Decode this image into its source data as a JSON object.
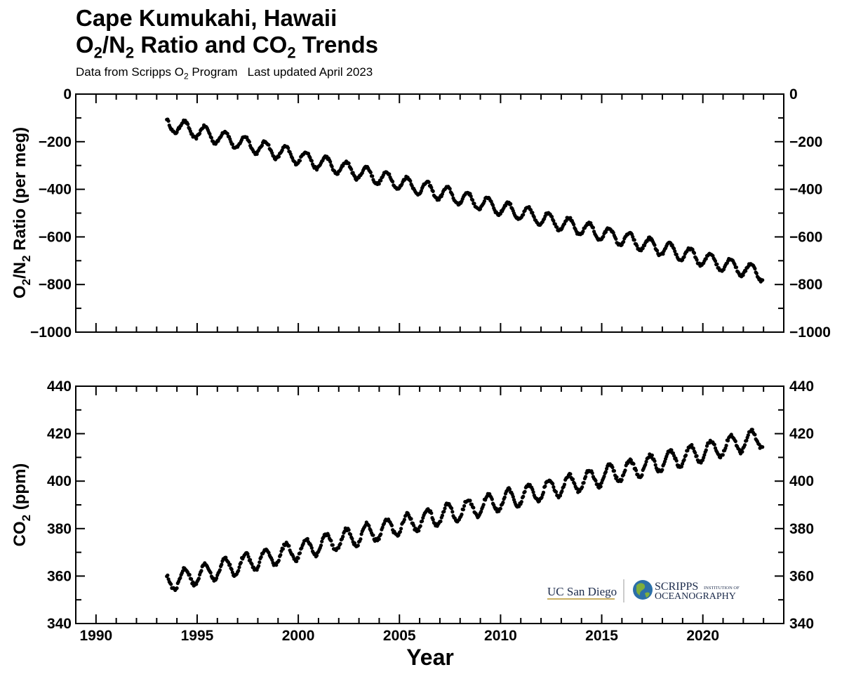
{
  "header": {
    "title_line1": "Cape Kumukahi, Hawaii",
    "title_line2_pre": "O",
    "title_line2_sub1": "2",
    "title_line2_mid": "/N",
    "title_line2_sub2": "2",
    "title_line2_mid2": " Ratio and CO",
    "title_line2_sub3": "2",
    "title_line2_post": " Trends",
    "subtitle_pre": "Data from Scripps O",
    "subtitle_sub": "2",
    "subtitle_mid": " Program",
    "subtitle_post": "Last updated April 2023"
  },
  "logos": {
    "ucsd": "UC San Diego",
    "scripps_main": "SCRIPPS",
    "scripps_small": "INSTITUTION OF",
    "scripps_bottom": "OCEANOGRAPHY"
  },
  "chart_data": [
    {
      "type": "scatter",
      "panel": "top",
      "ylabel_pre": "O",
      "ylabel_sub1": "2",
      "ylabel_mid": "/N",
      "ylabel_sub2": "2",
      "ylabel_post": " Ratio (per meg)",
      "xlim": [
        1989,
        2024
      ],
      "ylim": [
        -1000,
        0
      ],
      "y_ticks": [
        0,
        -200,
        -400,
        -600,
        -800,
        -1000
      ],
      "y_tick_labels": [
        "0",
        "−200",
        "−400",
        "−600",
        "−800",
        "−1000"
      ],
      "series": [
        {
          "x_start": 1993.5,
          "x_end": 2022.95,
          "trend_start": -125,
          "trend_end": -755,
          "seasonal_amplitude": 30,
          "points_per_year": 24,
          "color": "#000000"
        }
      ]
    },
    {
      "type": "scatter",
      "panel": "bottom",
      "ylabel_pre": "CO",
      "ylabel_sub": "2",
      "ylabel_post": " (ppm)",
      "xlabel": "Year",
      "xlim": [
        1989,
        2024
      ],
      "ylim": [
        340,
        440
      ],
      "y_ticks": [
        340,
        360,
        380,
        400,
        420,
        440
      ],
      "y_tick_labels": [
        "340",
        "360",
        "380",
        "400",
        "420",
        "440"
      ],
      "x_ticks": [
        1990,
        1995,
        2000,
        2005,
        2010,
        2015,
        2020
      ],
      "x_tick_labels": [
        "1990",
        "1995",
        "2000",
        "2005",
        "2010",
        "2015",
        "2020"
      ],
      "series": [
        {
          "x_start": 1993.5,
          "x_end": 2022.95,
          "trend_start": 357.5,
          "trend_end": 418.5,
          "seasonal_amplitude": 4,
          "points_per_year": 24,
          "color": "#000000"
        }
      ]
    }
  ]
}
